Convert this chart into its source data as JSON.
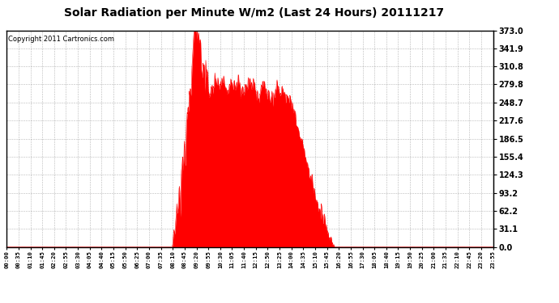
{
  "title": "Solar Radiation per Minute W/m2 (Last 24 Hours) 20111217",
  "copyright_text": "Copyright 2011 Cartronics.com",
  "yticks": [
    0.0,
    31.1,
    62.2,
    93.2,
    124.3,
    155.4,
    186.5,
    217.6,
    248.7,
    279.8,
    310.8,
    341.9,
    373.0
  ],
  "ymax": 373.0,
  "ymin": 0.0,
  "fill_color": "#ff0000",
  "line_color": "#ff0000",
  "bg_color": "#ffffff",
  "grid_color": "#888888",
  "border_color": "#000000",
  "sunrise_min": 490,
  "sunset_min": 970,
  "peak_min": 560,
  "solar_peak": 373.0,
  "x_tick_labels": [
    "00:00",
    "00:35",
    "01:10",
    "01:45",
    "02:20",
    "02:55",
    "03:30",
    "04:05",
    "04:40",
    "05:15",
    "05:50",
    "06:25",
    "07:00",
    "07:35",
    "08:10",
    "08:45",
    "09:20",
    "09:55",
    "10:30",
    "11:05",
    "11:40",
    "12:15",
    "12:50",
    "13:25",
    "14:00",
    "14:35",
    "15:10",
    "15:45",
    "16:20",
    "16:55",
    "17:30",
    "18:05",
    "18:40",
    "19:15",
    "19:50",
    "20:25",
    "21:00",
    "21:35",
    "22:10",
    "22:45",
    "23:20",
    "23:55"
  ]
}
